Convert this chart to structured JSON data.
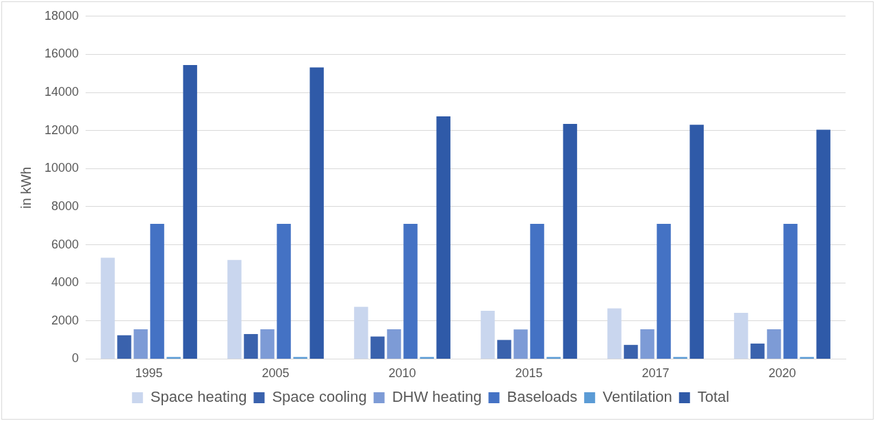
{
  "chart_data": {
    "type": "bar",
    "ylabel": "in kWh",
    "categories": [
      "1995",
      "2005",
      "2010",
      "2015",
      "2017",
      "2020"
    ],
    "series": [
      {
        "name": "Space heating",
        "color": "#c9d6ee",
        "values": [
          5320,
          5200,
          2740,
          2530,
          2660,
          2420
        ]
      },
      {
        "name": "Space cooling",
        "color": "#3a62ad",
        "values": [
          1250,
          1310,
          1180,
          1000,
          740,
          810
        ]
      },
      {
        "name": "DHW heating",
        "color": "#7d9bd6",
        "values": [
          1560,
          1560,
          1560,
          1550,
          1560,
          1560
        ]
      },
      {
        "name": "Baseloads",
        "color": "#4472c4",
        "values": [
          7100,
          7100,
          7100,
          7100,
          7100,
          7100
        ]
      },
      {
        "name": "Ventilation",
        "color": "#5b9bd5",
        "values": [
          100,
          100,
          100,
          100,
          100,
          100
        ]
      },
      {
        "name": "Total",
        "color": "#2f5aa8",
        "values": [
          15440,
          15310,
          12740,
          12350,
          12300,
          12040
        ]
      }
    ],
    "ylim": [
      0,
      18000
    ],
    "yticks": [
      0,
      2000,
      4000,
      6000,
      8000,
      10000,
      12000,
      14000,
      16000,
      18000
    ],
    "grid": "y",
    "legend": "bottom"
  }
}
